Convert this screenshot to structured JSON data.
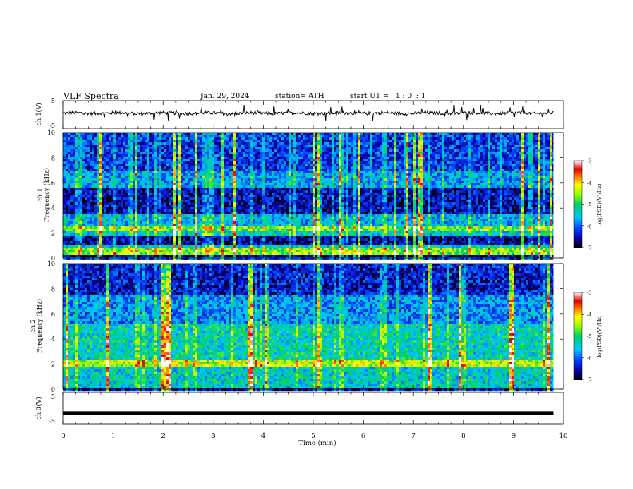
{
  "header": {
    "title": "VLF Spectra",
    "date": "Jan. 29, 2024",
    "station": "station= ATH",
    "start_ut": "start UT =   1 : 0  : 1"
  },
  "chart_data": [
    {
      "type": "line",
      "panel": "ch1-waveform",
      "ylabel": "ch.1(V)",
      "ylim": [
        -5,
        5
      ],
      "yticks": [
        "5",
        "-5"
      ],
      "xlim": [
        0,
        10
      ],
      "baseline": 0.5,
      "ripple_amplitude": 0.6,
      "spikes_amplitude": 2.5,
      "data_end_min": 9.8
    },
    {
      "type": "heatmap",
      "panel": "ch1-spectrogram",
      "ylabel": "ch.1\nFrequency (kHz)",
      "ylim": [
        0,
        10
      ],
      "yticks": [
        "0",
        "2",
        "4",
        "6",
        "8",
        "10"
      ],
      "xlim": [
        0,
        10
      ],
      "data_end_min": 9.8,
      "colorbar": {
        "label": "log(PSD)(V²/Hz)",
        "range": [
          -7,
          -3
        ],
        "ticks": [
          "-3",
          "-4",
          "-5",
          "-6",
          "-7"
        ]
      },
      "bands_khz": [
        {
          "from": 0.0,
          "to": 0.3,
          "level": -6.8
        },
        {
          "from": 0.3,
          "to": 0.8,
          "level": -4.6
        },
        {
          "from": 0.8,
          "to": 1.1,
          "level": -5.4
        },
        {
          "from": 1.1,
          "to": 1.7,
          "level": -6.6
        },
        {
          "from": 1.7,
          "to": 2.2,
          "level": -5.4
        },
        {
          "from": 2.2,
          "to": 2.5,
          "level": -4.7
        },
        {
          "from": 2.5,
          "to": 3.5,
          "level": -5.6
        },
        {
          "from": 3.5,
          "to": 5.6,
          "level": -6.5
        },
        {
          "from": 5.6,
          "to": 7.0,
          "level": -5.7
        },
        {
          "from": 7.0,
          "to": 10.0,
          "level": -6.2
        }
      ]
    },
    {
      "type": "heatmap",
      "panel": "ch2-spectrogram",
      "ylabel": "ch.2\nFrequency (kHz)",
      "ylim": [
        0,
        10
      ],
      "yticks": [
        "0",
        "2",
        "4",
        "6",
        "8",
        "10"
      ],
      "xlim": [
        0,
        10
      ],
      "data_end_min": 9.8,
      "colorbar": {
        "label": "log(PSD)(V²/Hz)",
        "range": [
          -7,
          -3
        ],
        "ticks": [
          "-3",
          "-4",
          "-5",
          "-6",
          "-7"
        ]
      },
      "bands_khz": [
        {
          "from": 0.0,
          "to": 1.7,
          "level": -5.4
        },
        {
          "from": 1.7,
          "to": 2.4,
          "level": -4.4
        },
        {
          "from": 2.4,
          "to": 3.8,
          "level": -5.3
        },
        {
          "from": 3.8,
          "to": 5.2,
          "level": -5.3
        },
        {
          "from": 5.2,
          "to": 7.5,
          "level": -5.8
        },
        {
          "from": 7.5,
          "to": 10.0,
          "level": -6.4
        }
      ]
    },
    {
      "type": "line",
      "panel": "ch3-waveform",
      "ylabel": "ch.3(V)",
      "ylim": [
        -5,
        5
      ],
      "yticks": [
        "5",
        "-5"
      ],
      "xlim": [
        0,
        10
      ],
      "baseline": -1.6,
      "data_end_min": 9.8
    }
  ],
  "x_axis": {
    "label": "Time (min)",
    "ticks": [
      "0",
      "1",
      "2",
      "3",
      "4",
      "5",
      "6",
      "7",
      "8",
      "9",
      "10"
    ]
  }
}
